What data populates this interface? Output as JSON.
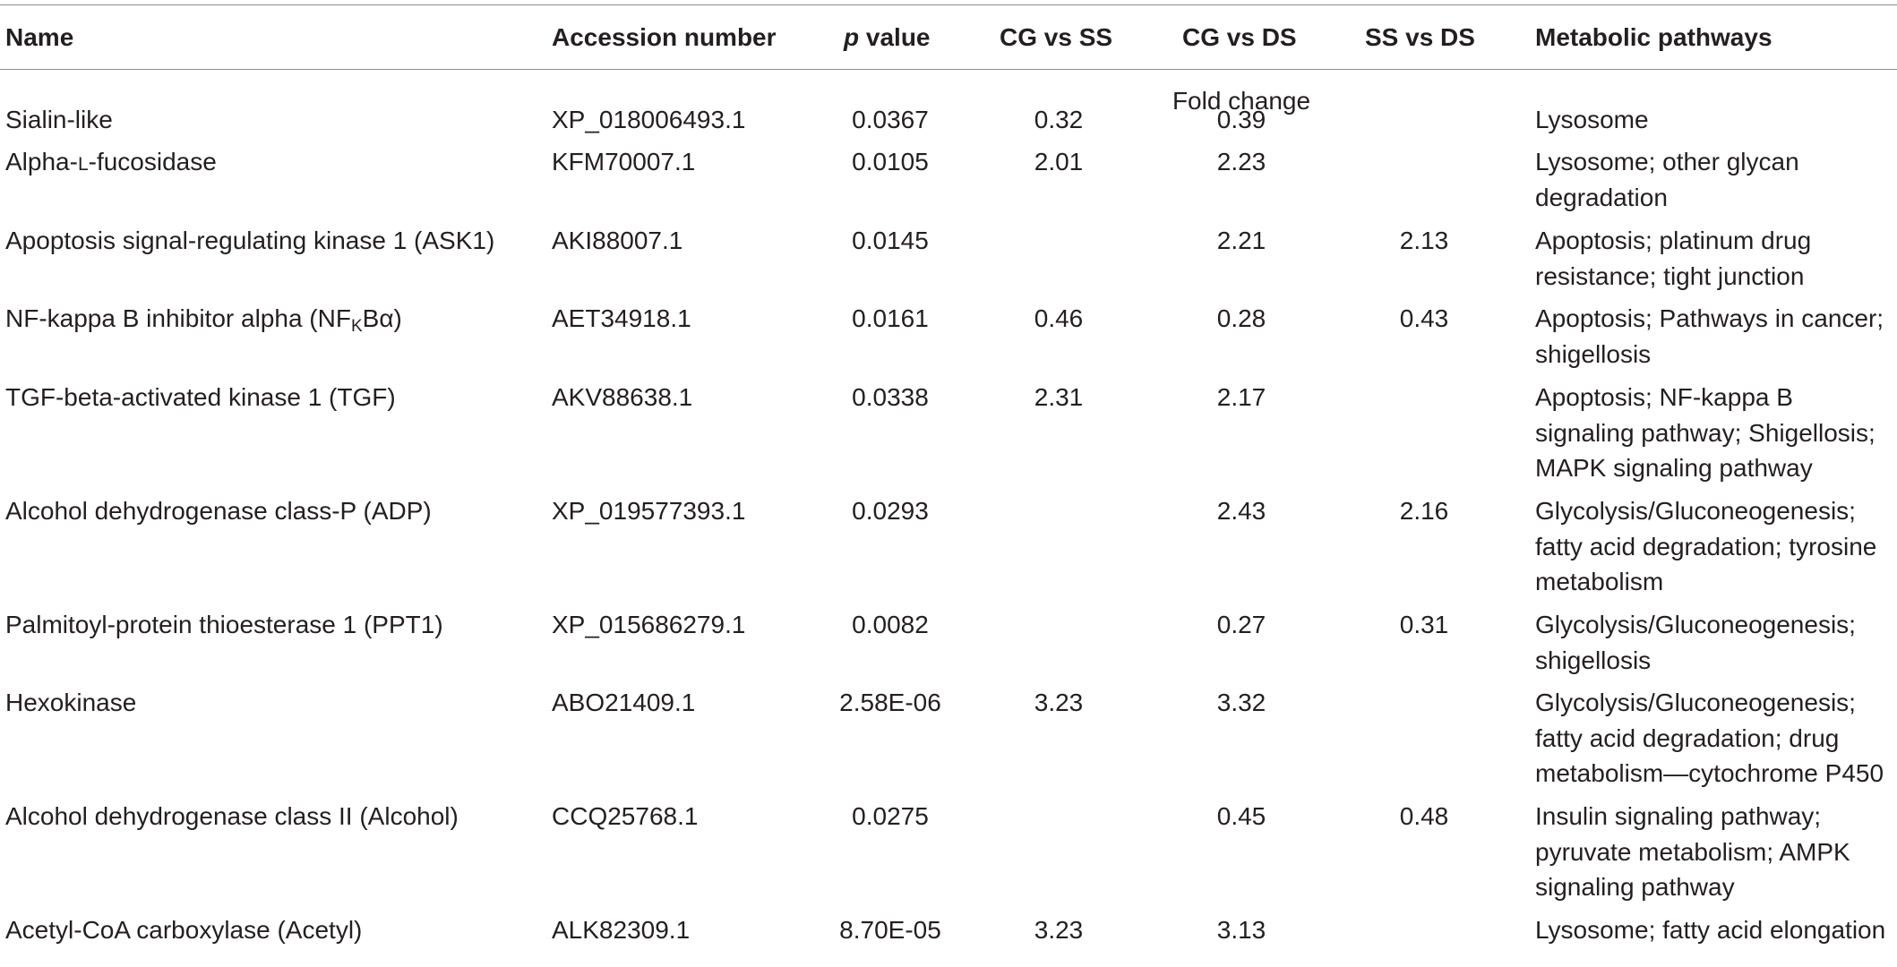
{
  "table": {
    "headers": {
      "name": "Name",
      "accession": "Accession number",
      "p_italic": "p",
      "p_rest": " value",
      "cg_ss": "CG vs SS",
      "cg_ds": "CG vs DS",
      "ss_ds": "SS vs DS",
      "pathways": "Metabolic pathways"
    },
    "subheader": "Fold change",
    "rows": [
      {
        "name": "Sialin-like",
        "accession": "XP_018006493.1",
        "p": "0.0367",
        "cg_ss": "0.32",
        "cg_ds": "0.39",
        "ss_ds": "",
        "pathways": [
          "Lysosome"
        ]
      },
      {
        "name_pre": "Alpha-",
        "name_sc": "L",
        "name_post": "-fucosidase",
        "accession": "KFM70007.1",
        "p": "0.0105",
        "cg_ss": "2.01",
        "cg_ds": "2.23",
        "ss_ds": "",
        "pathways": [
          "Lysosome; other glycan",
          "degradation"
        ]
      },
      {
        "name": "Apoptosis signal-regulating kinase 1 (ASK1)",
        "accession": "AKI88007.1",
        "p": "0.0145",
        "cg_ss": "",
        "cg_ds": "2.21",
        "ss_ds": "2.13",
        "pathways": [
          "Apoptosis; platinum drug",
          "resistance; tight junction"
        ]
      },
      {
        "name_pre": "NF-kappa B inhibitor alpha (NF",
        "name_sub": "K",
        "name_post": "Bα)",
        "accession": "AET34918.1",
        "p": "0.0161",
        "cg_ss": "0.46",
        "cg_ds": "0.28",
        "ss_ds": "0.43",
        "pathways": [
          "Apoptosis; Pathways in cancer;",
          "shigellosis"
        ]
      },
      {
        "name": "TGF-beta-activated kinase 1 (TGF)",
        "accession": "AKV88638.1",
        "p": "0.0338",
        "cg_ss": "2.31",
        "cg_ds": "2.17",
        "ss_ds": "",
        "pathways": [
          "Apoptosis; NF-kappa B",
          "signaling pathway; Shigellosis;",
          "MAPK signaling pathway"
        ]
      },
      {
        "name": "Alcohol dehydrogenase class-P (ADP)",
        "accession": "XP_019577393.1",
        "p": "0.0293",
        "cg_ss": "",
        "cg_ds": "2.43",
        "ss_ds": "2.16",
        "pathways": [
          "Glycolysis/Gluconeogenesis;",
          "fatty acid degradation; tyrosine",
          "metabolism"
        ]
      },
      {
        "name": "Palmitoyl-protein thioesterase 1 (PPT1)",
        "accession": "XP_015686279.1",
        "p": "0.0082",
        "cg_ss": "",
        "cg_ds": "0.27",
        "ss_ds": "0.31",
        "pathways": [
          "Glycolysis/Gluconeogenesis;",
          "shigellosis"
        ]
      },
      {
        "name": "Hexokinase",
        "accession": "ABO21409.1",
        "p": "2.58E-06",
        "cg_ss": "3.23",
        "cg_ds": "3.32",
        "ss_ds": "",
        "pathways": [
          "Glycolysis/Gluconeogenesis;",
          "fatty acid degradation; drug",
          "metabolism—cytochrome P450"
        ]
      },
      {
        "name": "Alcohol dehydrogenase class II (Alcohol)",
        "accession": "CCQ25768.1",
        "p": "0.0275",
        "cg_ss": "",
        "cg_ds": "0.45",
        "ss_ds": "0.48",
        "pathways": [
          "Insulin signaling pathway;",
          "pyruvate metabolism; AMPK",
          "signaling pathway"
        ]
      },
      {
        "name": "Acetyl-CoA carboxylase (Acetyl)",
        "accession": "ALK82309.1",
        "p": "8.70E-05",
        "cg_ss": "3.23",
        "cg_ds": "3.13",
        "ss_ds": "",
        "pathways": [
          "Lysosome; fatty acid elongation"
        ]
      }
    ]
  }
}
